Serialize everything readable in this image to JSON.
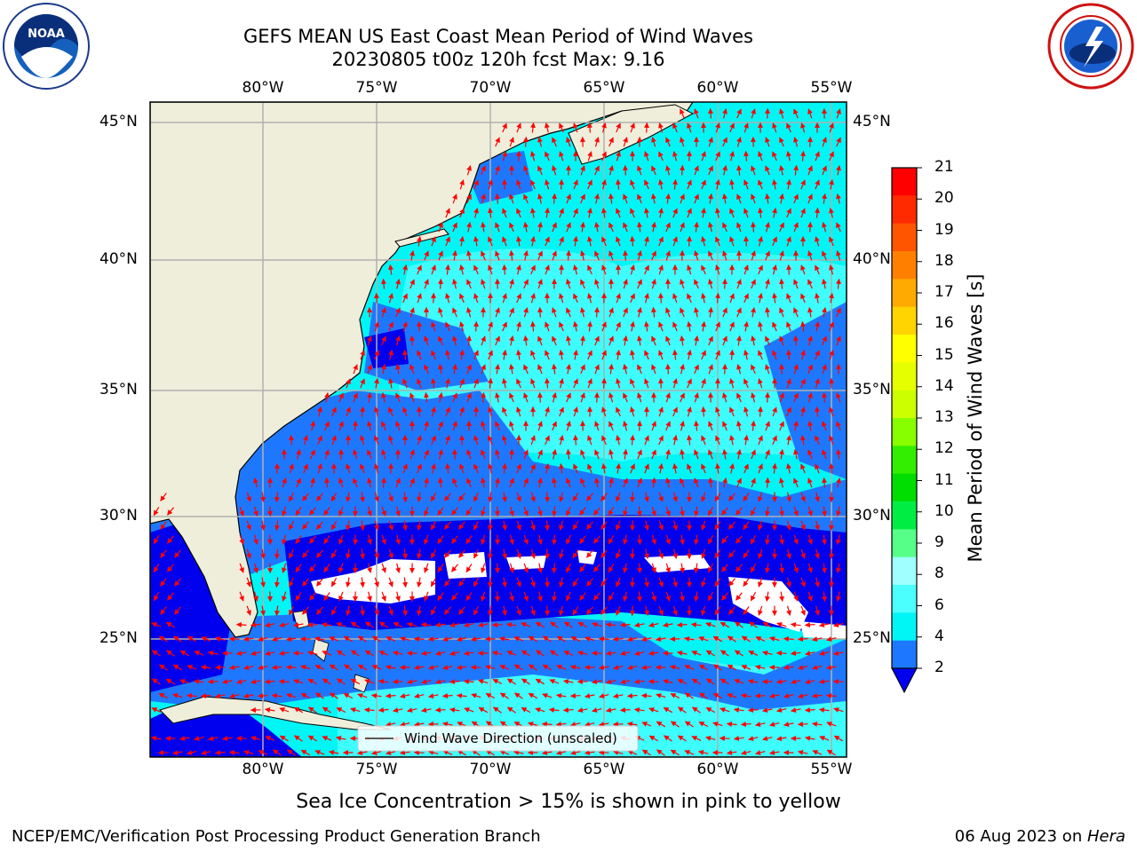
{
  "title": {
    "line1": "GEFS MEAN US East Coast Mean Period of Wind Waves",
    "line2": "20230805 t00z 120h fcst   Max: 9.16"
  },
  "logos": {
    "noaa": "NOAA",
    "noaa_ring": "NATIONAL OCEANIC AND ATMOSPHERIC ADMINISTRATION · U.S. DEPARTMENT OF COMMERCE",
    "nws_ring": "NATIONAL WEATHER SERVICE"
  },
  "map": {
    "lon_labels": [
      "80°W",
      "75°W",
      "70°W",
      "65°W",
      "60°W",
      "55°W"
    ],
    "lat_labels": [
      "45°N",
      "40°N",
      "35°N",
      "30°N",
      "25°N"
    ],
    "legend_text": "Wind Wave Direction (unscaled)",
    "colors": {
      "land": "#efeedb",
      "blue_dark": "#0000ee",
      "blue_mid": "#1e78ff",
      "cyan": "#00f5f5",
      "cyan_light": "#4cffff",
      "arrow": "#ff0000",
      "grid": "#b0b0b0"
    }
  },
  "colorbar": {
    "label": "Mean Period of Wind Waves [s]",
    "ticks": [
      "21",
      "20",
      "19",
      "18",
      "17",
      "16",
      "15",
      "14",
      "13",
      "12",
      "11",
      "10",
      "9",
      "8",
      "6",
      "4",
      "2"
    ],
    "colors": [
      "#ff0000",
      "#ff2a00",
      "#ff5500",
      "#ff8000",
      "#ffaa00",
      "#ffd400",
      "#ffff00",
      "#e6ff00",
      "#ccff00",
      "#88ff00",
      "#33ee00",
      "#00dd00",
      "#00ee44",
      "#55ff88",
      "#a0ffff",
      "#4cffff",
      "#00f5f5",
      "#1e78ff"
    ],
    "extend_color": "#0000ee"
  },
  "footer": {
    "sea_ice_note": "Sea Ice Concentration > 15% is shown in pink to yellow",
    "left": "NCEP/EMC/Verification Post Processing Product Generation Branch",
    "date": "06 Aug 2023 on ",
    "machine": "Hera"
  }
}
